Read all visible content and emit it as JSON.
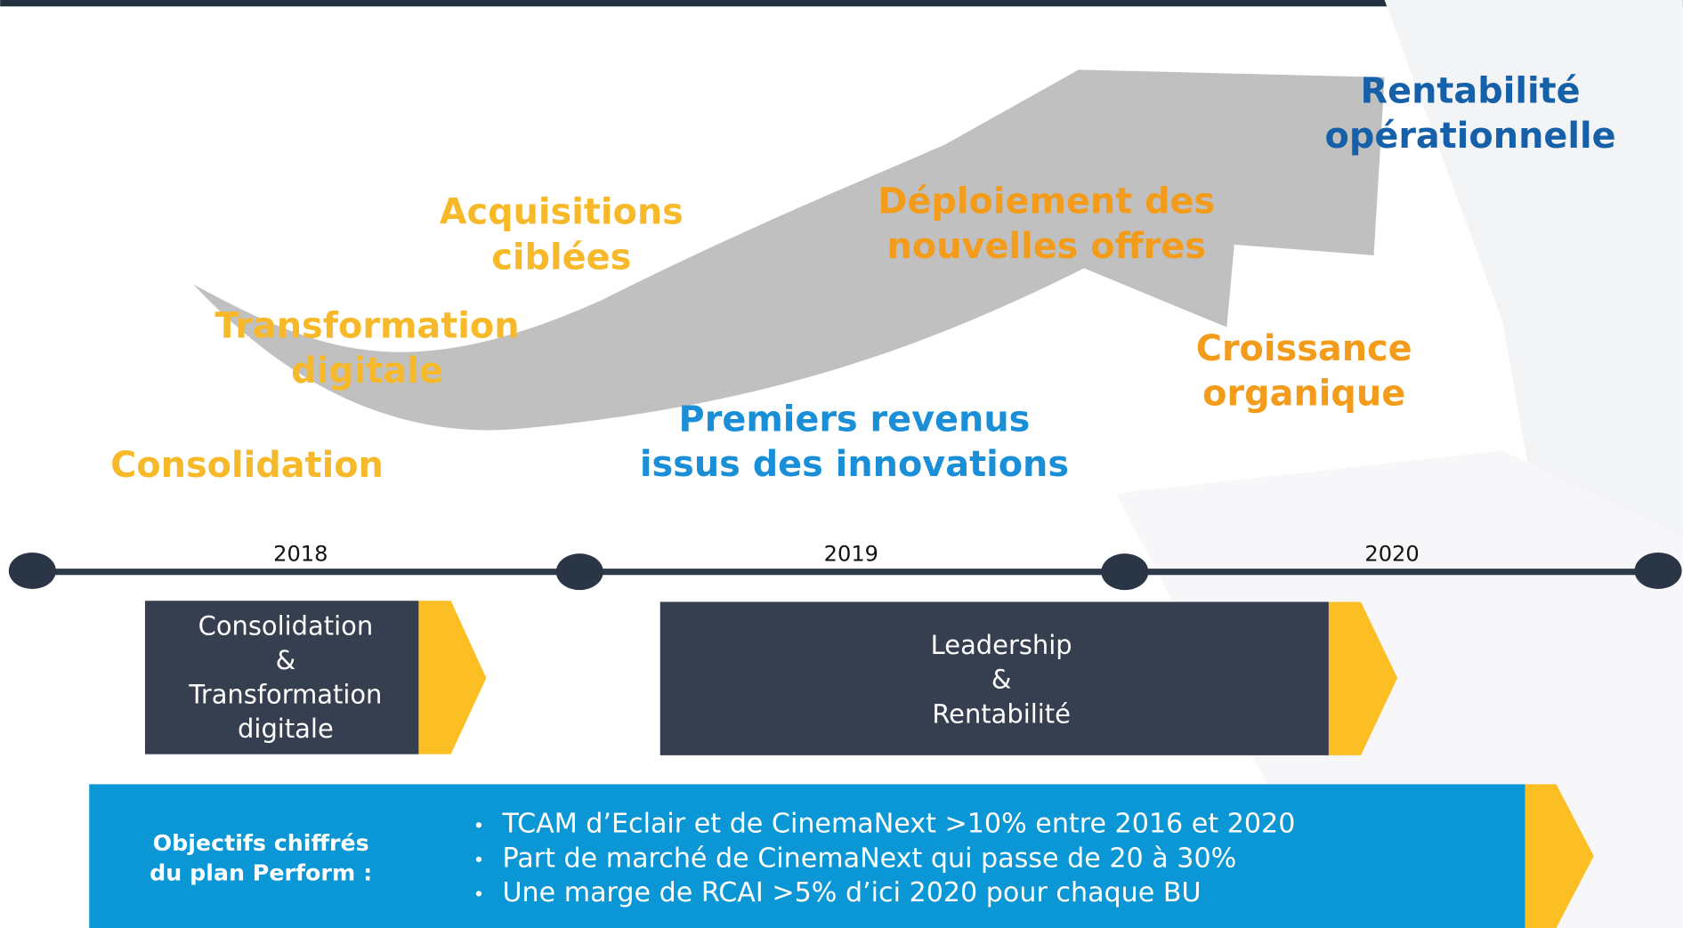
{
  "milestones": [
    {
      "lines": [
        "Rentabilité",
        "opérationnelle"
      ]
    },
    {
      "lines": [
        "Déploiement des",
        "nouvelles offres"
      ]
    },
    {
      "lines": [
        "Acquisitions",
        "ciblées"
      ]
    },
    {
      "lines": [
        "Transformation",
        "digitale"
      ]
    },
    {
      "lines": [
        "Croissance",
        "organique"
      ]
    },
    {
      "lines": [
        "Premiers revenus",
        "issus des innovations"
      ]
    },
    {
      "lines": [
        "Consolidation"
      ]
    }
  ],
  "timeline": {
    "years": [
      "2018",
      "2019",
      "2020"
    ]
  },
  "phases": [
    {
      "lines": [
        "Consolidation",
        "&",
        "Transformation",
        "digitale"
      ]
    },
    {
      "lines": [
        "Leadership",
        "&",
        "Rentabilité"
      ]
    }
  ],
  "objectives": {
    "title": [
      "Objectifs chiffrés",
      "du plan Perform :"
    ],
    "bullets": [
      "TCAM d’Eclair et de CinemaNext >10% entre 2016 et 2020",
      "Part de marché de CinemaNext qui passe de 20 à 30%",
      "Une marge de RCAI >5% d’ici 2020 pour chaque BU"
    ]
  }
}
